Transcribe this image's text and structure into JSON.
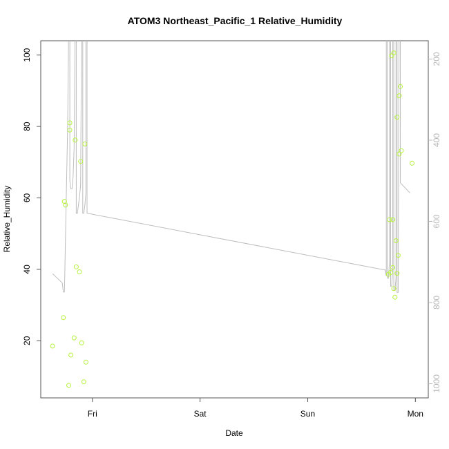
{
  "chart_data": {
    "type": "scatter",
    "title": "ATOM3 Northeast_Pacific_1 Relative_Humidity",
    "xlabel": "Date",
    "ylabel": "Relative_Humidity",
    "x_ticks": [
      "Fri",
      "Sat",
      "Sun",
      "Mon"
    ],
    "x_tick_days": [
      1,
      2,
      3,
      4
    ],
    "xlim_days": [
      0.52,
      4.12
    ],
    "ylim": [
      4,
      104
    ],
    "y_ticks": [
      20,
      40,
      60,
      80,
      100
    ],
    "y2_ticks": [
      200,
      400,
      600,
      800,
      1000
    ],
    "y2lim": [
      1035,
      155
    ],
    "y2_reversed": true,
    "grid": false,
    "colors": {
      "points": "#b5f23a",
      "line": "#bdbdbd",
      "frame": "#555555",
      "right_axis": "#b8b8b8"
    },
    "series": [
      {
        "kind": "points",
        "points": [
          [
            0.63,
            18.5
          ],
          [
            0.73,
            26.5
          ],
          [
            0.74,
            59.0
          ],
          [
            0.75,
            58.0
          ],
          [
            0.78,
            7.5
          ],
          [
            0.79,
            79.0
          ],
          [
            0.79,
            81.0
          ],
          [
            0.8,
            16.0
          ],
          [
            0.83,
            20.8
          ],
          [
            0.84,
            76.2
          ],
          [
            0.85,
            40.7
          ],
          [
            0.88,
            39.3
          ],
          [
            0.89,
            70.2
          ],
          [
            0.9,
            19.4
          ],
          [
            0.92,
            8.5
          ],
          [
            0.93,
            75.1
          ],
          [
            0.94,
            14.0
          ],
          [
            3.75,
            38.6
          ],
          [
            3.76,
            53.9
          ],
          [
            3.77,
            39.1
          ],
          [
            3.78,
            99.8
          ],
          [
            3.79,
            40.5
          ],
          [
            3.79,
            53.9
          ],
          [
            3.8,
            34.6
          ],
          [
            3.8,
            100.6
          ],
          [
            3.81,
            32.2
          ],
          [
            3.82,
            48.0
          ],
          [
            3.83,
            38.9
          ],
          [
            3.83,
            82.6
          ],
          [
            3.84,
            43.9
          ],
          [
            3.85,
            72.3
          ],
          [
            3.85,
            88.6
          ],
          [
            3.86,
            91.2
          ],
          [
            3.87,
            73.2
          ],
          [
            3.97,
            69.7
          ]
        ]
      },
      {
        "kind": "line",
        "axis": "y2",
        "points": [
          [
            0.63,
            729
          ],
          [
            0.72,
            752
          ],
          [
            0.73,
            774
          ],
          [
            0.74,
            774
          ],
          [
            0.77,
            360
          ],
          [
            0.78,
            101
          ],
          [
            0.79,
            101
          ],
          [
            0.79,
            500
          ],
          [
            0.8,
            520
          ],
          [
            0.81,
            520
          ],
          [
            0.82,
            490
          ],
          [
            0.83,
            420
          ],
          [
            0.84,
            101
          ],
          [
            0.85,
            101
          ],
          [
            0.85,
            580
          ],
          [
            0.86,
            580
          ],
          [
            0.88,
            540
          ],
          [
            0.89,
            510
          ],
          [
            0.9,
            101
          ],
          [
            0.91,
            101
          ],
          [
            0.91,
            580
          ],
          [
            0.92,
            580
          ],
          [
            0.93,
            560
          ],
          [
            0.94,
            530
          ],
          [
            0.94,
            101
          ],
          [
            0.95,
            101
          ],
          [
            0.95,
            580
          ],
          [
            3.72,
            720
          ],
          [
            3.73,
            735
          ],
          [
            3.73,
            101
          ],
          [
            3.74,
            101
          ],
          [
            3.74,
            740
          ],
          [
            3.75,
            740
          ],
          [
            3.76,
            700
          ],
          [
            3.76,
            101
          ],
          [
            3.77,
            101
          ],
          [
            3.77,
            760
          ],
          [
            3.78,
            760
          ],
          [
            3.79,
            720
          ],
          [
            3.79,
            101
          ],
          [
            3.8,
            101
          ],
          [
            3.8,
            770
          ],
          [
            3.81,
            770
          ],
          [
            3.82,
            740
          ],
          [
            3.82,
            101
          ],
          [
            3.83,
            101
          ],
          [
            3.83,
            775
          ],
          [
            3.84,
            775
          ],
          [
            3.85,
            101
          ],
          [
            3.86,
            101
          ],
          [
            3.86,
            505
          ],
          [
            3.95,
            530
          ]
        ]
      }
    ]
  }
}
